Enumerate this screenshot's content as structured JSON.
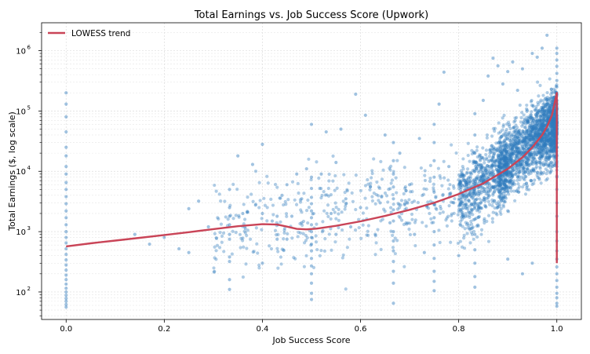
{
  "chart_data": {
    "type": "scatter",
    "title": "Total Earnings vs. Job Success Score (Upwork)",
    "xlabel": "Job Success Score",
    "ylabel": "Total Earnings ($, log scale)",
    "xlim": [
      -0.05,
      1.05
    ],
    "ylim": [
      35,
      2900000
    ],
    "yscale": "log",
    "grid": true,
    "legend_position": "top-left",
    "x_ticks": [
      {
        "value": 0.0,
        "label": "0.0"
      },
      {
        "value": 0.2,
        "label": "0.2"
      },
      {
        "value": 0.4,
        "label": "0.4"
      },
      {
        "value": 0.6,
        "label": "0.6"
      },
      {
        "value": 0.8,
        "label": "0.8"
      },
      {
        "value": 1.0,
        "label": "1.0"
      }
    ],
    "y_ticks": [
      {
        "value": 100,
        "base": "10",
        "exp": "2"
      },
      {
        "value": 1000,
        "base": "10",
        "exp": "3"
      },
      {
        "value": 10000,
        "base": "10",
        "exp": "4"
      },
      {
        "value": 100000,
        "base": "10",
        "exp": "5"
      },
      {
        "value": 1000000,
        "base": "10",
        "exp": "6"
      }
    ],
    "series": [
      {
        "kind": "points",
        "color": "#2f7bbd",
        "points": [
          [
            0,
            200000
          ],
          [
            0,
            130000
          ],
          [
            0,
            80000
          ],
          [
            0,
            45000
          ],
          [
            0,
            25000
          ],
          [
            0,
            18000
          ],
          [
            0,
            12000
          ],
          [
            0,
            9000
          ],
          [
            0,
            6500
          ],
          [
            0,
            5000
          ],
          [
            0,
            3800
          ],
          [
            0,
            2900
          ],
          [
            0,
            2200
          ],
          [
            0,
            1700
          ],
          [
            0,
            1300
          ],
          [
            0,
            1000
          ],
          [
            0,
            800
          ],
          [
            0,
            650
          ],
          [
            0,
            520
          ],
          [
            0,
            420
          ],
          [
            0,
            340
          ],
          [
            0,
            280
          ],
          [
            0,
            230
          ],
          [
            0,
            190
          ],
          [
            0,
            160
          ],
          [
            0,
            135
          ],
          [
            0,
            115
          ],
          [
            0,
            100
          ],
          [
            0,
            88
          ],
          [
            0,
            78
          ],
          [
            0,
            70
          ],
          [
            0,
            62
          ],
          [
            0,
            56
          ],
          [
            0.14,
            900
          ],
          [
            0.17,
            620
          ],
          [
            0.2,
            800
          ],
          [
            0.23,
            520
          ],
          [
            0.25,
            2400
          ],
          [
            0.25,
            450
          ],
          [
            0.27,
            3200
          ],
          [
            0.29,
            1200
          ],
          [
            0.333,
            5000
          ],
          [
            0.333,
            2500
          ],
          [
            0.333,
            1800
          ],
          [
            0.333,
            1300
          ],
          [
            0.333,
            900
          ],
          [
            0.333,
            750
          ],
          [
            0.333,
            380
          ],
          [
            0.333,
            320
          ],
          [
            0.333,
            160
          ],
          [
            0.333,
            110
          ],
          [
            0.35,
            18000
          ],
          [
            0.36,
            2000
          ],
          [
            0.37,
            2100
          ],
          [
            0.38,
            13000
          ],
          [
            0.4,
            28000
          ],
          [
            0.4,
            2000
          ],
          [
            0.4,
            300
          ],
          [
            0.42,
            1500
          ],
          [
            0.43,
            1800
          ],
          [
            0.43,
            750
          ],
          [
            0.44,
            4000
          ],
          [
            0.45,
            6000
          ],
          [
            0.45,
            750
          ],
          [
            0.46,
            1800
          ],
          [
            0.47,
            9000
          ],
          [
            0.48,
            1400
          ],
          [
            0.48,
            3500
          ],
          [
            0.49,
            11000
          ],
          [
            0.5,
            60000
          ],
          [
            0.5,
            8000
          ],
          [
            0.5,
            5200
          ],
          [
            0.5,
            3700
          ],
          [
            0.5,
            2900
          ],
          [
            0.5,
            2200
          ],
          [
            0.5,
            1700
          ],
          [
            0.5,
            1300
          ],
          [
            0.5,
            1000
          ],
          [
            0.5,
            800
          ],
          [
            0.5,
            620
          ],
          [
            0.5,
            480
          ],
          [
            0.5,
            360
          ],
          [
            0.5,
            270
          ],
          [
            0.5,
            200
          ],
          [
            0.5,
            140
          ],
          [
            0.5,
            95
          ],
          [
            0.5,
            75
          ],
          [
            0.52,
            9000
          ],
          [
            0.53,
            45000
          ],
          [
            0.54,
            2000
          ],
          [
            0.55,
            14000
          ],
          [
            0.55,
            900
          ],
          [
            0.56,
            50000
          ],
          [
            0.57,
            3500
          ],
          [
            0.58,
            1200
          ],
          [
            0.59,
            190000
          ],
          [
            0.6,
            2500
          ],
          [
            0.61,
            85000
          ],
          [
            0.62,
            5500
          ],
          [
            0.63,
            900
          ],
          [
            0.64,
            3000
          ],
          [
            0.65,
            40000
          ],
          [
            0.66,
            1400
          ],
          [
            0.667,
            30000
          ],
          [
            0.667,
            15000
          ],
          [
            0.667,
            9000
          ],
          [
            0.667,
            5500
          ],
          [
            0.667,
            3500
          ],
          [
            0.667,
            2300
          ],
          [
            0.667,
            1500
          ],
          [
            0.667,
            1000
          ],
          [
            0.667,
            700
          ],
          [
            0.667,
            480
          ],
          [
            0.667,
            320
          ],
          [
            0.667,
            220
          ],
          [
            0.667,
            140
          ],
          [
            0.667,
            65
          ],
          [
            0.68,
            20000
          ],
          [
            0.69,
            2800
          ],
          [
            0.7,
            6000
          ],
          [
            0.71,
            900
          ],
          [
            0.72,
            35000
          ],
          [
            0.73,
            450
          ],
          [
            0.75,
            60000
          ],
          [
            0.75,
            30000
          ],
          [
            0.75,
            15000
          ],
          [
            0.75,
            8000
          ],
          [
            0.75,
            4500
          ],
          [
            0.75,
            2800
          ],
          [
            0.75,
            1700
          ],
          [
            0.75,
            1000
          ],
          [
            0.75,
            600
          ],
          [
            0.75,
            360
          ],
          [
            0.75,
            220
          ],
          [
            0.75,
            150
          ],
          [
            0.75,
            105
          ],
          [
            0.76,
            130000
          ],
          [
            0.77,
            440000
          ],
          [
            0.78,
            12000
          ],
          [
            0.79,
            3000
          ],
          [
            0.8,
            400
          ],
          [
            0.81,
            7500
          ],
          [
            0.833,
            90000
          ],
          [
            0.833,
            40000
          ],
          [
            0.833,
            20000
          ],
          [
            0.833,
            10000
          ],
          [
            0.833,
            5500
          ],
          [
            0.833,
            3000
          ],
          [
            0.833,
            1600
          ],
          [
            0.833,
            900
          ],
          [
            0.833,
            500
          ],
          [
            0.833,
            300
          ],
          [
            0.833,
            180
          ],
          [
            0.833,
            120
          ],
          [
            0.85,
            150000
          ],
          [
            0.86,
            380000
          ],
          [
            0.87,
            750000
          ],
          [
            0.88,
            560000
          ],
          [
            0.89,
            280000
          ],
          [
            0.9,
            450000
          ],
          [
            0.91,
            650000
          ],
          [
            0.92,
            220000
          ],
          [
            0.93,
            500000
          ],
          [
            0.95,
            900000
          ],
          [
            0.96,
            780000
          ],
          [
            0.98,
            1800000
          ],
          [
            0.97,
            1100000
          ],
          [
            0.9,
            350
          ],
          [
            0.93,
            200
          ],
          [
            0.95,
            300
          ],
          [
            1,
            1100000
          ],
          [
            1,
            900000
          ],
          [
            1,
            700000
          ],
          [
            1,
            550000
          ],
          [
            1,
            420000
          ],
          [
            1,
            320000
          ],
          [
            1,
            250000
          ],
          [
            1,
            190000
          ],
          [
            1,
            150000
          ],
          [
            1,
            110000
          ],
          [
            1,
            85000
          ],
          [
            1,
            65000
          ],
          [
            1,
            48000
          ],
          [
            1,
            35000
          ],
          [
            1,
            25000
          ],
          [
            1,
            18000
          ],
          [
            1,
            12000
          ],
          [
            1,
            8000
          ],
          [
            1,
            5000
          ],
          [
            1,
            3000
          ],
          [
            1,
            1800
          ],
          [
            1,
            1000
          ],
          [
            1,
            700
          ],
          [
            1,
            480
          ],
          [
            1,
            350
          ],
          [
            1,
            260
          ],
          [
            1,
            200
          ],
          [
            1,
            155
          ],
          [
            1,
            120
          ],
          [
            1,
            95
          ],
          [
            1,
            80
          ],
          [
            1,
            65
          ],
          [
            1,
            58
          ]
        ],
        "cloud": {
          "description_of_density": "dense cloud concentrated between x 0.80 and 1.0, earnings roughly 1e3 to 5e5, centred near the trend",
          "regions": [
            {
              "x": [
                0.3,
                0.8
              ],
              "y_center": [
                1100,
                3500
              ],
              "y_spread_decades": 0.7,
              "count": 420
            },
            {
              "x": [
                0.8,
                0.9
              ],
              "y_center": [
                3500,
                12000
              ],
              "y_spread_decades": 0.55,
              "count": 700
            },
            {
              "x": [
                0.88,
                1.0
              ],
              "y_center": [
                12000,
                60000
              ],
              "y_spread_decades": 0.5,
              "count": 1900
            }
          ]
        }
      },
      {
        "name": "LOWESS trend",
        "kind": "line",
        "color": "#c94457",
        "points": [
          [
            0.0,
            570
          ],
          [
            0.05,
            640
          ],
          [
            0.1,
            710
          ],
          [
            0.15,
            790
          ],
          [
            0.2,
            880
          ],
          [
            0.25,
            980
          ],
          [
            0.3,
            1100
          ],
          [
            0.35,
            1230
          ],
          [
            0.4,
            1330
          ],
          [
            0.43,
            1310
          ],
          [
            0.45,
            1210
          ],
          [
            0.47,
            1110
          ],
          [
            0.49,
            1090
          ],
          [
            0.51,
            1120
          ],
          [
            0.55,
            1250
          ],
          [
            0.6,
            1480
          ],
          [
            0.65,
            1820
          ],
          [
            0.7,
            2300
          ],
          [
            0.75,
            3000
          ],
          [
            0.8,
            4200
          ],
          [
            0.85,
            6300
          ],
          [
            0.9,
            11000
          ],
          [
            0.93,
            17000
          ],
          [
            0.95,
            25000
          ],
          [
            0.97,
            40000
          ],
          [
            0.98,
            55000
          ],
          [
            0.99,
            85000
          ],
          [
            0.995,
            130000
          ],
          [
            1.0,
            200000
          ],
          [
            1.0,
            300
          ]
        ]
      }
    ]
  }
}
